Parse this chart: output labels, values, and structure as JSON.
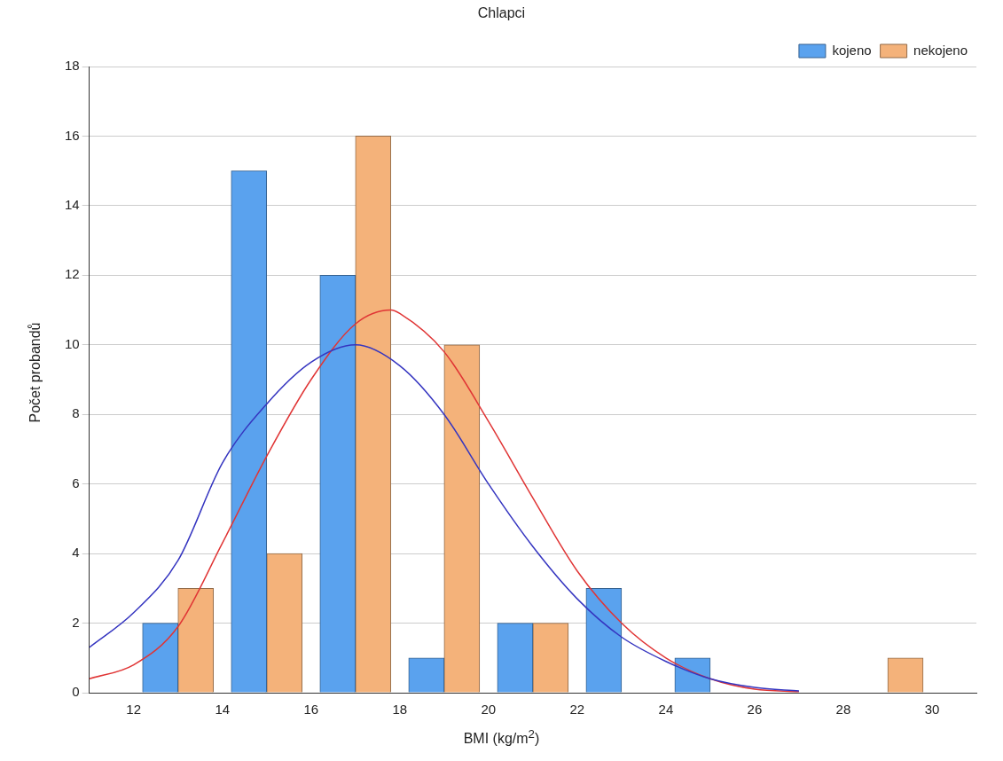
{
  "chart_data": {
    "type": "histogram",
    "title": "Chlapci",
    "xlabel": "BMI (kg/m$^{2}$)",
    "ylabel": "Počet probandů",
    "bins": [
      12,
      14,
      16,
      18,
      20,
      22,
      24,
      26,
      28,
      30
    ],
    "series": [
      {
        "name": "kojeno",
        "color": "#5aa2ee",
        "values": [
          2,
          15,
          12,
          1,
          2,
          3,
          1,
          0,
          0
        ]
      },
      {
        "name": "nekojeno",
        "color": "#f4b27a",
        "values": [
          3,
          4,
          16,
          10,
          2,
          0,
          0,
          0,
          1
        ]
      },
      {
        "type": "line",
        "color": "#3535c0",
        "x": [
          11,
          12,
          13,
          14,
          15,
          16,
          17,
          18,
          19,
          20,
          21,
          22,
          23,
          24,
          25,
          26,
          27
        ],
        "values": [
          1.3,
          2.3,
          3.8,
          6.6,
          8.3,
          9.5,
          10,
          9.4,
          8.0,
          6.0,
          4.2,
          2.7,
          1.6,
          0.9,
          0.4,
          0.15,
          0.05
        ]
      },
      {
        "type": "line",
        "color": "#e03535",
        "x": [
          11,
          12,
          13,
          14,
          15,
          16,
          17,
          17.8,
          18,
          19,
          20,
          21,
          22,
          23,
          24,
          25,
          26,
          27
        ],
        "values": [
          0.4,
          0.8,
          1.9,
          4.3,
          6.8,
          9.0,
          10.6,
          11,
          10.9,
          9.8,
          7.8,
          5.6,
          3.5,
          2.0,
          1.0,
          0.4,
          0.1,
          0.03
        ]
      }
    ],
    "xlim": [
      11,
      31
    ],
    "xticks": [
      12,
      14,
      16,
      18,
      20,
      22,
      24,
      26,
      28,
      30
    ],
    "ylim": [
      0,
      18
    ],
    "yticks": [
      0,
      2,
      4,
      6,
      8,
      10,
      12,
      14,
      16,
      18
    ],
    "grid": "y",
    "legend": "top right"
  }
}
